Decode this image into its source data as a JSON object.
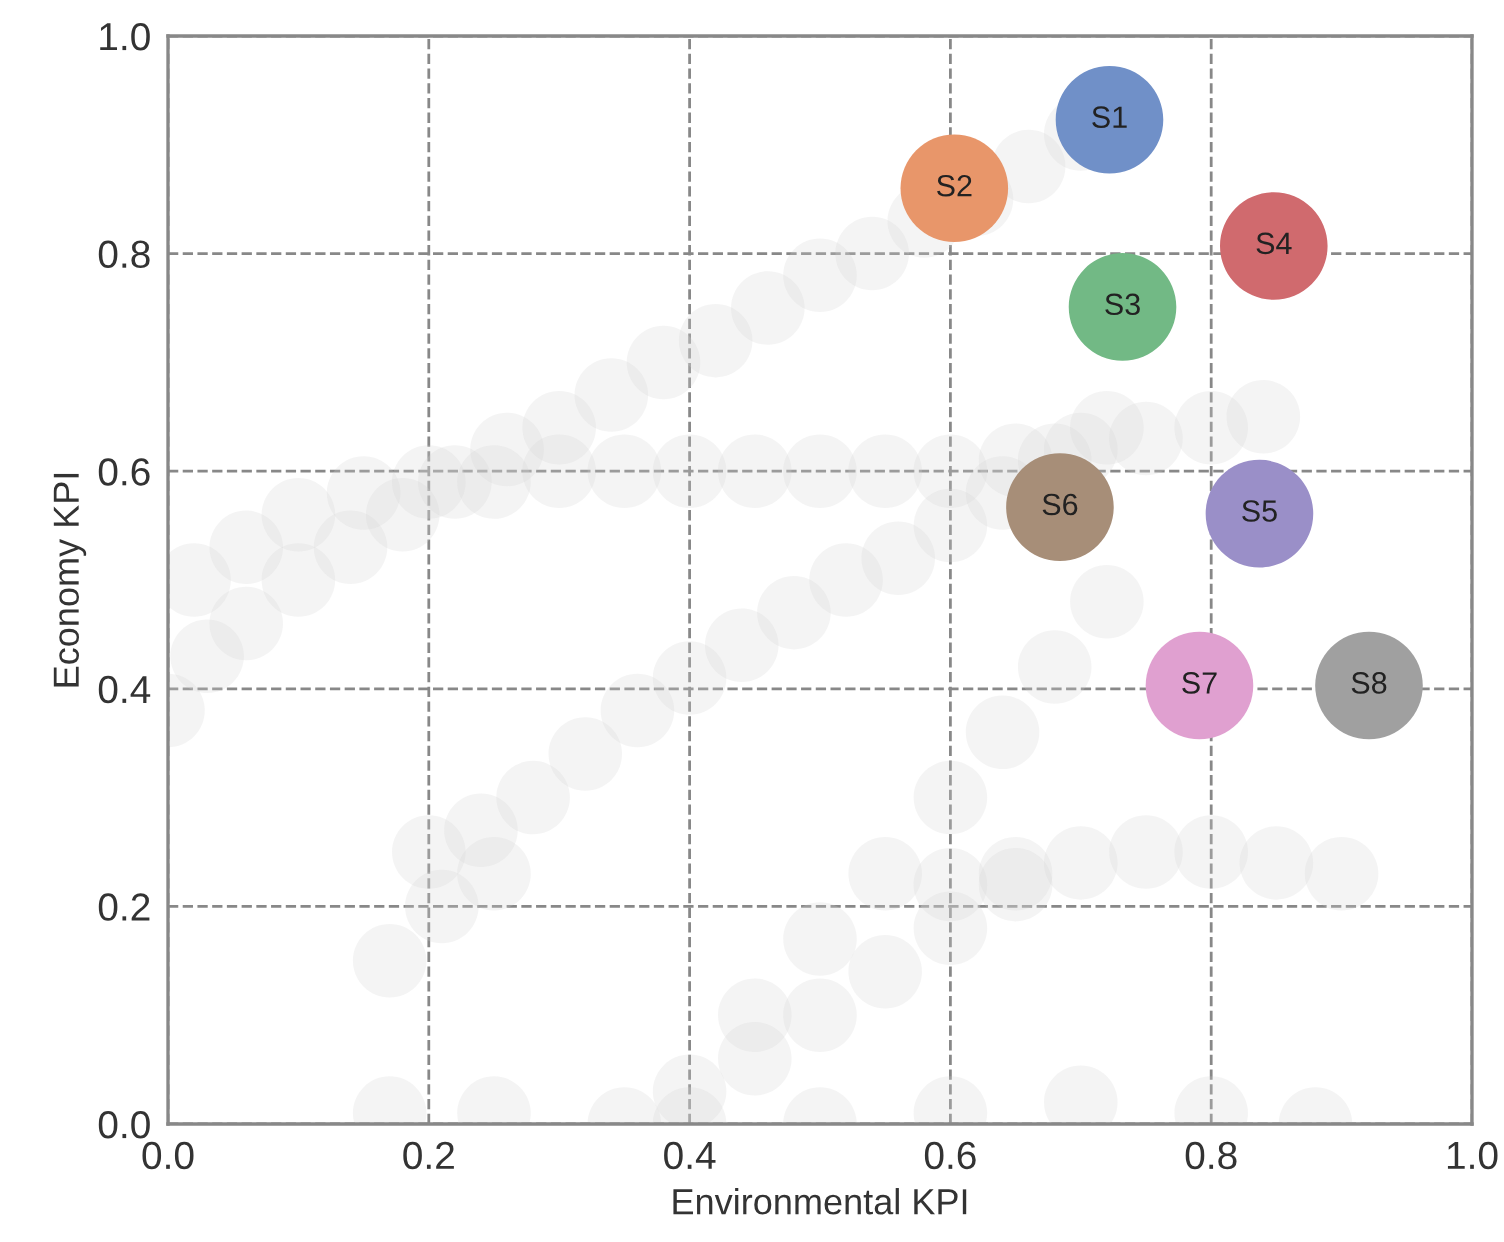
{
  "chart_data": {
    "type": "scatter",
    "xlabel": "Environmental KPI",
    "ylabel": "Economy KPI",
    "xlim": [
      0,
      1
    ],
    "ylim": [
      0,
      1
    ],
    "xticks": [
      {
        "value": 0,
        "label": "0.0"
      },
      {
        "value": 0.2,
        "label": "0.2"
      },
      {
        "value": 0.4,
        "label": "0.4"
      },
      {
        "value": 0.6,
        "label": "0.6"
      },
      {
        "value": 0.8,
        "label": "0.8"
      },
      {
        "value": 1,
        "label": "1.0"
      }
    ],
    "yticks": [
      {
        "value": 0,
        "label": "0.0"
      },
      {
        "value": 0.2,
        "label": "0.2"
      },
      {
        "value": 0.4,
        "label": "0.4"
      },
      {
        "value": 0.6,
        "label": "0.6"
      },
      {
        "value": 0.8,
        "label": "0.8"
      },
      {
        "value": 1,
        "label": "1.0"
      }
    ],
    "grid": true,
    "marker": "circle",
    "series": [
      {
        "color": "#d4d4d4",
        "x": [
          0.0,
          0.03,
          0.06,
          0.1,
          0.14,
          0.18,
          0.22,
          0.26,
          0.3,
          0.34,
          0.38,
          0.42,
          0.46,
          0.5,
          0.54,
          0.58,
          0.62,
          0.66,
          0.7,
          0.02,
          0.06,
          0.1,
          0.15,
          0.2,
          0.25,
          0.3,
          0.35,
          0.4,
          0.45,
          0.5,
          0.55,
          0.6,
          0.65,
          0.7,
          0.75,
          0.8,
          0.84,
          0.2,
          0.24,
          0.28,
          0.32,
          0.36,
          0.4,
          0.44,
          0.48,
          0.52,
          0.56,
          0.6,
          0.64,
          0.68,
          0.72,
          0.17,
          0.21,
          0.25,
          0.45,
          0.5,
          0.55,
          0.6,
          0.64,
          0.68,
          0.72,
          0.6,
          0.65,
          0.7,
          0.75,
          0.8,
          0.85,
          0.9,
          0.35,
          0.4,
          0.45,
          0.5,
          0.55,
          0.6,
          0.65,
          0.17,
          0.25,
          0.4,
          0.5,
          0.6,
          0.7,
          0.8,
          0.88
        ],
        "values": [
          0.38,
          0.43,
          0.46,
          0.5,
          0.53,
          0.56,
          0.59,
          0.62,
          0.64,
          0.67,
          0.7,
          0.72,
          0.75,
          0.78,
          0.8,
          0.83,
          0.85,
          0.88,
          0.91,
          0.5,
          0.53,
          0.56,
          0.58,
          0.59,
          0.59,
          0.6,
          0.6,
          0.6,
          0.6,
          0.6,
          0.6,
          0.6,
          0.61,
          0.62,
          0.63,
          0.64,
          0.65,
          0.25,
          0.27,
          0.3,
          0.34,
          0.38,
          0.41,
          0.44,
          0.47,
          0.5,
          0.52,
          0.55,
          0.58,
          0.61,
          0.64,
          0.15,
          0.2,
          0.23,
          0.1,
          0.17,
          0.23,
          0.3,
          0.36,
          0.42,
          0.48,
          0.22,
          0.23,
          0.24,
          0.25,
          0.25,
          0.24,
          0.23,
          0.0,
          0.03,
          0.06,
          0.1,
          0.14,
          0.18,
          0.22,
          0.01,
          0.01,
          0.0,
          0.0,
          0.01,
          0.02,
          0.01,
          0.0
        ]
      },
      {
        "name": "S1",
        "color": "#7090c8",
        "x": [
          0.722
        ],
        "values": [
          0.923
        ]
      },
      {
        "name": "S2",
        "color": "#e8966a",
        "x": [
          0.603
        ],
        "values": [
          0.86
        ]
      },
      {
        "name": "S3",
        "color": "#72b985",
        "x": [
          0.732
        ],
        "values": [
          0.751
        ]
      },
      {
        "name": "S4",
        "color": "#d06a6e",
        "x": [
          0.848
        ],
        "values": [
          0.807
        ]
      },
      {
        "name": "S5",
        "color": "#9a8fc8",
        "x": [
          0.837
        ],
        "values": [
          0.561
        ]
      },
      {
        "name": "S6",
        "color": "#a78e78",
        "x": [
          0.684
        ],
        "values": [
          0.567
        ]
      },
      {
        "name": "S7",
        "color": "#e0a0d0",
        "x": [
          0.791
        ],
        "values": [
          0.403
        ]
      },
      {
        "name": "S8",
        "color": "#a0a0a0",
        "x": [
          0.921
        ],
        "values": [
          0.403
        ]
      }
    ]
  }
}
